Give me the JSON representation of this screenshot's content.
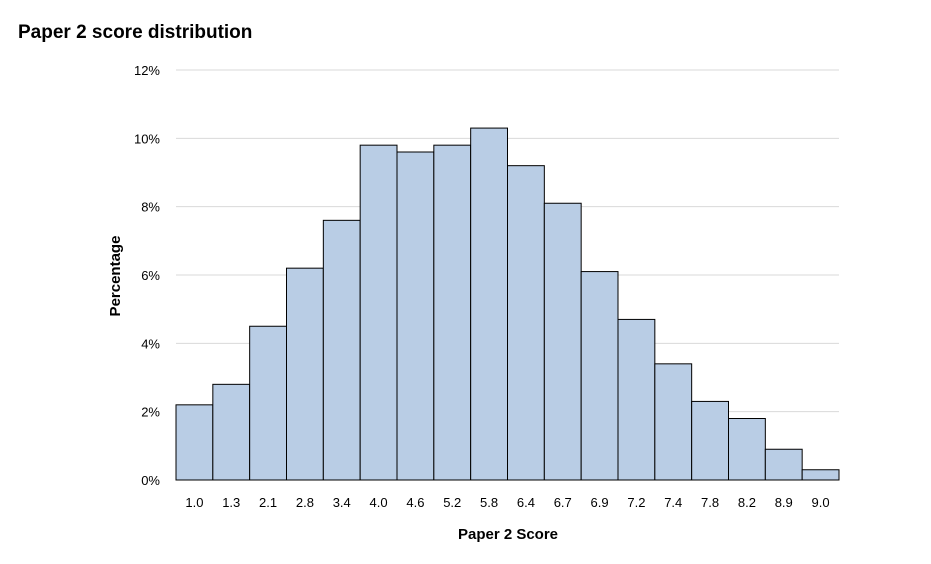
{
  "chart_data": {
    "type": "bar",
    "title": "Paper 2 score distribution",
    "xlabel": "Paper 2 Score",
    "ylabel": "Percentage",
    "categories": [
      "1.0",
      "1.3",
      "2.1",
      "2.8",
      "3.4",
      "4.0",
      "4.6",
      "5.2",
      "5.8",
      "6.4",
      "6.7",
      "6.9",
      "7.2",
      "7.4",
      "7.8",
      "8.2",
      "8.9",
      "9.0"
    ],
    "values": [
      2.2,
      2.8,
      4.5,
      6.2,
      7.6,
      9.8,
      9.6,
      9.8,
      10.3,
      9.2,
      8.1,
      6.1,
      4.7,
      3.4,
      2.3,
      1.8,
      0.9,
      0.3
    ],
    "ylim": [
      0,
      12
    ],
    "yticks": [
      0,
      2,
      4,
      6,
      8,
      10,
      12
    ],
    "ytick_labels": [
      "0%",
      "2%",
      "4%",
      "6%",
      "8%",
      "10%",
      "12%"
    ],
    "grid": true,
    "legend": "none",
    "colors": {
      "bar_fill": "#b9cde5",
      "bar_stroke": "#000000",
      "grid": "#d9d9d9",
      "axis": "#000000"
    }
  }
}
